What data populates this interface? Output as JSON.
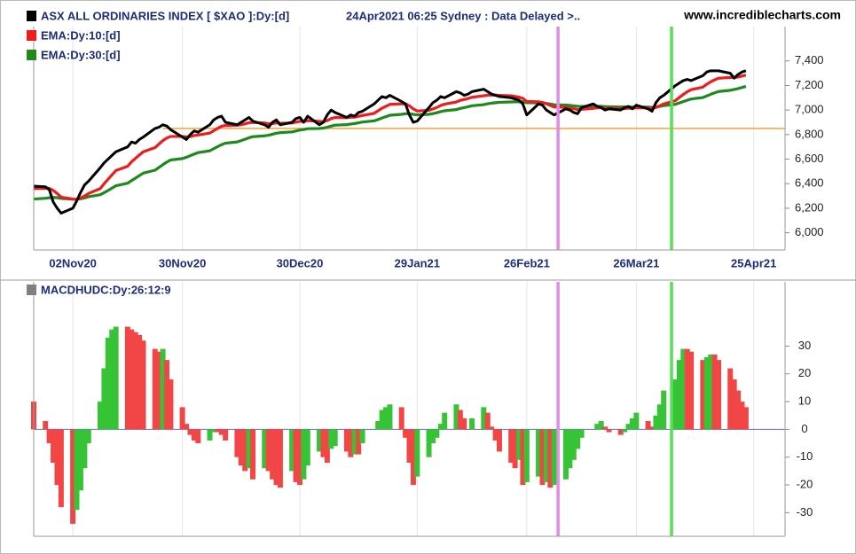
{
  "chart_data": [
    {
      "type": "line",
      "subtitle": "24Apr2021 06:25 Sydney : Data Delayed >..",
      "source": "www.incrediblecharts.com",
      "x": [
        "2020-10-23",
        "2020-10-26",
        "2020-10-27",
        "2020-10-28",
        "2020-10-29",
        "2020-10-30",
        "2020-11-02",
        "2020-11-03",
        "2020-11-04",
        "2020-11-05",
        "2020-11-06",
        "2020-11-09",
        "2020-11-10",
        "2020-11-11",
        "2020-11-12",
        "2020-11-13",
        "2020-11-16",
        "2020-11-17",
        "2020-11-18",
        "2020-11-19",
        "2020-11-20",
        "2020-11-23",
        "2020-11-24",
        "2020-11-25",
        "2020-11-26",
        "2020-11-27",
        "2020-11-30",
        "2020-12-01",
        "2020-12-02",
        "2020-12-03",
        "2020-12-04",
        "2020-12-07",
        "2020-12-08",
        "2020-12-09",
        "2020-12-10",
        "2020-12-11",
        "2020-12-14",
        "2020-12-15",
        "2020-12-16",
        "2020-12-17",
        "2020-12-18",
        "2020-12-21",
        "2020-12-22",
        "2020-12-23",
        "2020-12-24",
        "2020-12-25",
        "2020-12-28",
        "2020-12-29",
        "2020-12-30",
        "2020-12-31",
        "2021-01-01",
        "2021-01-04",
        "2021-01-05",
        "2021-01-06",
        "2021-01-07",
        "2021-01-08",
        "2021-01-11",
        "2021-01-12",
        "2021-01-13",
        "2021-01-14",
        "2021-01-15",
        "2021-01-18",
        "2021-01-19",
        "2021-01-20",
        "2021-01-21",
        "2021-01-22",
        "2021-01-25",
        "2021-01-26",
        "2021-01-27",
        "2021-01-28",
        "2021-01-29",
        "2021-02-01",
        "2021-02-02",
        "2021-02-03",
        "2021-02-04",
        "2021-02-05",
        "2021-02-08",
        "2021-02-09",
        "2021-02-10",
        "2021-02-11",
        "2021-02-12",
        "2021-02-15",
        "2021-02-16",
        "2021-02-17",
        "2021-02-18",
        "2021-02-19",
        "2021-02-22",
        "2021-02-23",
        "2021-02-24",
        "2021-02-25",
        "2021-02-26",
        "2021-03-01",
        "2021-03-02",
        "2021-03-03",
        "2021-03-04",
        "2021-03-05",
        "2021-03-08",
        "2021-03-09",
        "2021-03-10",
        "2021-03-11",
        "2021-03-12",
        "2021-03-15",
        "2021-03-16",
        "2021-03-17",
        "2021-03-18",
        "2021-03-19",
        "2021-03-22",
        "2021-03-23",
        "2021-03-24",
        "2021-03-25",
        "2021-03-26",
        "2021-03-29",
        "2021-03-30",
        "2021-03-31",
        "2021-04-01",
        "2021-04-02",
        "2021-04-05",
        "2021-04-06",
        "2021-04-07",
        "2021-04-08",
        "2021-04-09",
        "2021-04-12",
        "2021-04-13",
        "2021-04-14",
        "2021-04-15",
        "2021-04-16",
        "2021-04-19",
        "2021-04-20",
        "2021-04-21",
        "2021-04-22",
        "2021-04-23"
      ],
      "series": [
        {
          "name": "ASX ALL ORDINARIES INDEX [ $XAO ]:Dy:[d]",
          "color": "#000000",
          "values": [
            6380,
            6375,
            6350,
            6250,
            6200,
            6160,
            6200,
            6260,
            6330,
            6390,
            6420,
            6530,
            6570,
            6600,
            6630,
            6660,
            6700,
            6740,
            6730,
            6760,
            6780,
            6850,
            6860,
            6880,
            6870,
            6840,
            6780,
            6760,
            6800,
            6830,
            6820,
            6880,
            6920,
            6940,
            6950,
            6900,
            6880,
            6900,
            6920,
            6940,
            6910,
            6880,
            6860,
            6900,
            6920,
            6880,
            6900,
            6930,
            6940,
            6900,
            6950,
            6880,
            6900,
            6960,
            7000,
            6980,
            6940,
            6960,
            6950,
            6980,
            6990,
            7050,
            7080,
            7110,
            7100,
            7120,
            7070,
            7050,
            6960,
            6900,
            6910,
            7020,
            7060,
            7080,
            7110,
            7100,
            7150,
            7140,
            7120,
            7130,
            7150,
            7170,
            7150,
            7130,
            7120,
            7110,
            7100,
            7090,
            7080,
            7050,
            6960,
            7050,
            7040,
            7000,
            6980,
            6960,
            7010,
            7000,
            6980,
            6970,
            7020,
            7050,
            7030,
            7020,
            7000,
            7010,
            7000,
            7020,
            7030,
            7010,
            7040,
            7010,
            6990,
            7060,
            7100,
            7120,
            7200,
            7220,
            7240,
            7250,
            7240,
            7280,
            7310,
            7320,
            7320,
            7320,
            7300,
            7260,
            7290,
            7310,
            7320
          ]
        },
        {
          "name": "EMA:Dy:10:[d]",
          "color": "#ee1c1c",
          "values": [
            6360,
            6362,
            6362,
            6345,
            6320,
            6290,
            6275,
            6272,
            6282,
            6300,
            6320,
            6360,
            6400,
            6436,
            6472,
            6507,
            6542,
            6578,
            6606,
            6634,
            6660,
            6694,
            6723,
            6751,
            6772,
            6785,
            6785,
            6781,
            6784,
            6792,
            6797,
            6812,
            6832,
            6851,
            6868,
            6874,
            6876,
            6881,
            6888,
            6897,
            6899,
            6895,
            6888,
            6890,
            6895,
            6892,
            6894,
            6901,
            6908,
            6906,
            6914,
            6907,
            6905,
            6914,
            6930,
            6939,
            6938,
            6941,
            6942,
            6949,
            6956,
            6973,
            6994,
            7015,
            7030,
            7046,
            7051,
            7051,
            7034,
            7010,
            6992,
            6998,
            7009,
            7021,
            7037,
            7048,
            7066,
            7079,
            7086,
            7094,
            7104,
            7116,
            7122,
            7123,
            7122,
            7120,
            7116,
            7111,
            7105,
            7095,
            7070,
            7067,
            7062,
            7051,
            7038,
            7024,
            7022,
            7018,
            7011,
            7003,
            7006,
            7014,
            7018,
            7018,
            7015,
            7014,
            7011,
            7012,
            7015,
            7014,
            7019,
            7018,
            7013,
            7021,
            7035,
            7050,
            7077,
            7103,
            7127,
            7149,
            7166,
            7187,
            7210,
            7230,
            7246,
            7259,
            7266,
            7265,
            7269,
            7277,
            7285
          ]
        },
        {
          "name": "EMA:Dy:30:[d]",
          "color": "#1e8a1e",
          "values": [
            6275,
            6281,
            6286,
            6288,
            6286,
            6280,
            6274,
            6273,
            6277,
            6285,
            6294,
            6310,
            6327,
            6345,
            6364,
            6383,
            6404,
            6425,
            6445,
            6466,
            6486,
            6510,
            6532,
            6555,
            6576,
            6593,
            6605,
            6615,
            6628,
            6641,
            6653,
            6668,
            6685,
            6702,
            6718,
            6730,
            6740,
            6751,
            6762,
            6774,
            6783,
            6790,
            6795,
            6803,
            6811,
            6816,
            6822,
            6829,
            6837,
            6841,
            6848,
            6850,
            6853,
            6860,
            6869,
            6877,
            6881,
            6886,
            6890,
            6896,
            6902,
            6912,
            6923,
            6935,
            6946,
            6958,
            6965,
            6970,
            6970,
            6965,
            6961,
            6965,
            6971,
            6978,
            6987,
            6994,
            7004,
            7013,
            7020,
            7027,
            7035,
            7044,
            7051,
            7056,
            7060,
            7063,
            7066,
            7067,
            7068,
            7067,
            7060,
            7059,
            7058,
            7054,
            7049,
            7043,
            7041,
            7038,
            7034,
            7030,
            7029,
            7030,
            7030,
            7030,
            7028,
            7027,
            7025,
            7025,
            7025,
            7024,
            7025,
            7024,
            7022,
            7025,
            7030,
            7036,
            7047,
            7058,
            7069,
            7080,
            7090,
            7102,
            7115,
            7128,
            7140,
            7151,
            7161,
            7168,
            7175,
            7184,
            7193
          ]
        }
      ],
      "xlim": [
        "2020-10-23",
        "2021-05-03"
      ],
      "xticks": [
        {
          "value": "2020-11-02",
          "label": "02Nov20"
        },
        {
          "value": "2020-11-30",
          "label": "30Nov20"
        },
        {
          "value": "2020-12-30",
          "label": "30Dec20"
        },
        {
          "value": "2021-01-29",
          "label": "29Jan21"
        },
        {
          "value": "2021-02-26",
          "label": "26Feb21"
        },
        {
          "value": "2021-03-26",
          "label": "26Mar21"
        },
        {
          "value": "2021-04-25",
          "label": "25Apr21"
        }
      ],
      "ylim": [
        5860,
        7680
      ],
      "yticks": [
        {
          "value": 6000,
          "label": "6,000"
        },
        {
          "value": 6200,
          "label": "6,200"
        },
        {
          "value": 6400,
          "label": "6,400"
        },
        {
          "value": 6600,
          "label": "6,600"
        },
        {
          "value": 6800,
          "label": "6,800"
        },
        {
          "value": 7000,
          "label": "7,000"
        },
        {
          "value": 7200,
          "label": "7,200"
        },
        {
          "value": 7400,
          "label": "7,400"
        }
      ],
      "hline": {
        "value": 6850,
        "from": "2020-11-25",
        "color": "#f5a23c"
      },
      "markers": [
        {
          "x": "2021-03-06",
          "color": "#e48ae8"
        },
        {
          "x": "2021-04-04",
          "color": "#55e055"
        }
      ],
      "grid": true
    },
    {
      "type": "histogram",
      "x": [
        "2020-10-23",
        "2020-10-26",
        "2020-10-27",
        "2020-10-28",
        "2020-10-29",
        "2020-10-30",
        "2020-11-02",
        "2020-11-03",
        "2020-11-04",
        "2020-11-05",
        "2020-11-06",
        "2020-11-09",
        "2020-11-10",
        "2020-11-11",
        "2020-11-12",
        "2020-11-13",
        "2020-11-16",
        "2020-11-17",
        "2020-11-18",
        "2020-11-19",
        "2020-11-20",
        "2020-11-23",
        "2020-11-24",
        "2020-11-25",
        "2020-11-26",
        "2020-11-27",
        "2020-11-30",
        "2020-12-01",
        "2020-12-02",
        "2020-12-03",
        "2020-12-04",
        "2020-12-07",
        "2020-12-08",
        "2020-12-09",
        "2020-12-10",
        "2020-12-11",
        "2020-12-14",
        "2020-12-15",
        "2020-12-16",
        "2020-12-17",
        "2020-12-18",
        "2020-12-21",
        "2020-12-22",
        "2020-12-23",
        "2020-12-24",
        "2020-12-25",
        "2020-12-28",
        "2020-12-29",
        "2020-12-30",
        "2020-12-31",
        "2021-01-01",
        "2021-01-04",
        "2021-01-05",
        "2021-01-06",
        "2021-01-07",
        "2021-01-08",
        "2021-01-11",
        "2021-01-12",
        "2021-01-13",
        "2021-01-14",
        "2021-01-15",
        "2021-01-18",
        "2021-01-19",
        "2021-01-20",
        "2021-01-21",
        "2021-01-22",
        "2021-01-25",
        "2021-01-26",
        "2021-01-27",
        "2021-01-28",
        "2021-01-29",
        "2021-02-01",
        "2021-02-02",
        "2021-02-03",
        "2021-02-04",
        "2021-02-05",
        "2021-02-08",
        "2021-02-09",
        "2021-02-10",
        "2021-02-11",
        "2021-02-12",
        "2021-02-15",
        "2021-02-16",
        "2021-02-17",
        "2021-02-18",
        "2021-02-19",
        "2021-02-22",
        "2021-02-23",
        "2021-02-24",
        "2021-02-25",
        "2021-02-26",
        "2021-03-01",
        "2021-03-02",
        "2021-03-03",
        "2021-03-04",
        "2021-03-05",
        "2021-03-08",
        "2021-03-09",
        "2021-03-10",
        "2021-03-11",
        "2021-03-12",
        "2021-03-15",
        "2021-03-16",
        "2021-03-17",
        "2021-03-18",
        "2021-03-19",
        "2021-03-22",
        "2021-03-23",
        "2021-03-24",
        "2021-03-25",
        "2021-03-26",
        "2021-03-29",
        "2021-03-30",
        "2021-03-31",
        "2021-04-01",
        "2021-04-02",
        "2021-04-05",
        "2021-04-06",
        "2021-04-07",
        "2021-04-08",
        "2021-04-09",
        "2021-04-12",
        "2021-04-13",
        "2021-04-14",
        "2021-04-15",
        "2021-04-16",
        "2021-04-19",
        "2021-04-20",
        "2021-04-21",
        "2021-04-22",
        "2021-04-23"
      ],
      "series": [
        {
          "name": "MACDHUDC:Dy:26:12:9",
          "color": "#808080",
          "up_color": "#36c436",
          "down_color": "#f24646",
          "values": [
            10,
            3,
            -5,
            -12,
            -20,
            -28,
            -34,
            -29,
            -22,
            -14,
            -5,
            10,
            22,
            33,
            36,
            37,
            37,
            36,
            35,
            34,
            32,
            29,
            28,
            29,
            25,
            18,
            8,
            2,
            -2,
            -4,
            -5,
            -4,
            -1,
            -1,
            -2,
            -4,
            -10,
            -13,
            -15,
            -14,
            -18,
            -14,
            -15,
            -18,
            -20,
            -21,
            -15,
            -19,
            -20,
            -18,
            -13,
            -8,
            -10,
            -12,
            -7,
            -6,
            -8,
            -10,
            -9,
            -9,
            -5,
            0,
            3,
            7,
            8,
            9,
            8,
            -3,
            -12,
            -20,
            -17,
            -10,
            -5,
            -3,
            2,
            6,
            9,
            7,
            4,
            0,
            4,
            8,
            6,
            1,
            -4,
            -8,
            -12,
            -14,
            -11,
            -20,
            -19,
            -17,
            -20,
            -19,
            -21,
            -20,
            -18,
            -14,
            -11,
            -7,
            -3,
            0,
            2,
            3,
            1,
            -1,
            -2,
            -1,
            2,
            4,
            6,
            3,
            1,
            5,
            9,
            14,
            18,
            25,
            29,
            29,
            28,
            25,
            26,
            27,
            27,
            25,
            22,
            18,
            14,
            10,
            8
          ]
        }
      ],
      "xlim": [
        "2020-10-23",
        "2021-05-03"
      ],
      "xticks": [
        "2020-11-02",
        "2020-11-30",
        "2020-12-30",
        "2021-01-29",
        "2021-02-26",
        "2021-03-26",
        "2021-04-25"
      ],
      "ylim": [
        -38.5,
        52.5
      ],
      "yticks": [
        -30,
        -20,
        -10,
        0,
        10,
        20,
        30
      ],
      "zero_color": "#6a6ad0",
      "markers": [
        {
          "x": "2021-03-06",
          "color": "#e48ae8"
        },
        {
          "x": "2021-04-04",
          "color": "#55e055"
        }
      ],
      "grid": true
    }
  ]
}
